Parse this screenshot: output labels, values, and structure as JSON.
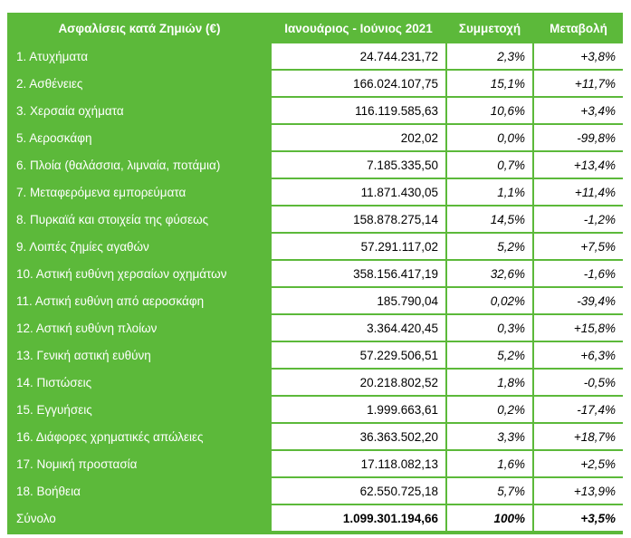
{
  "headers": [
    "Ασφαλίσεις κατά Ζημιών (€)",
    "Ιανουάριος - Ιούνιος 2021",
    "Συμμετοχή",
    "Μεταβολή"
  ],
  "rows": [
    {
      "label": "1. Ατυχήματα",
      "amount": "24.744.231,72",
      "share": "2,3%",
      "change": "+3,8%"
    },
    {
      "label": "2. Ασθένειες",
      "amount": "166.024.107,75",
      "share": "15,1%",
      "change": "+11,7%"
    },
    {
      "label": "3. Χερσαία οχήματα",
      "amount": "116.119.585,63",
      "share": "10,6%",
      "change": "+3,4%"
    },
    {
      "label": "5. Αεροσκάφη",
      "amount": "202,02",
      "share": "0,0%",
      "change": "-99,8%"
    },
    {
      "label": "6. Πλοία (θαλάσσια, λιμναία, ποτάμια)",
      "amount": "7.185.335,50",
      "share": "0,7%",
      "change": "+13,4%"
    },
    {
      "label": "7. Μεταφερόμενα εμπορεύματα",
      "amount": "11.871.430,05",
      "share": "1,1%",
      "change": "+11,4%"
    },
    {
      "label": "8. Πυρκαϊά και στοιχεία της φύσεως",
      "amount": "158.878.275,14",
      "share": "14,5%",
      "change": "-1,2%"
    },
    {
      "label": "9. Λοιπές ζημίες αγαθών",
      "amount": "57.291.117,02",
      "share": "5,2%",
      "change": "+7,5%"
    },
    {
      "label": "10. Αστική ευθύνη χερσαίων οχημάτων",
      "amount": "358.156.417,19",
      "share": "32,6%",
      "change": "-1,6%"
    },
    {
      "label": "11. Αστική ευθύνη από αεροσκάφη",
      "amount": "185.790,04",
      "share": "0,02%",
      "change": "-39,4%"
    },
    {
      "label": "12. Αστική ευθύνη πλοίων",
      "amount": "3.364.420,45",
      "share": "0,3%",
      "change": "+15,8%"
    },
    {
      "label": "13. Γενική αστική ευθύνη",
      "amount": "57.229.506,51",
      "share": "5,2%",
      "change": "+6,3%"
    },
    {
      "label": "14. Πιστώσεις",
      "amount": "20.218.802,52",
      "share": "1,8%",
      "change": "-0,5%"
    },
    {
      "label": "15. Εγγυήσεις",
      "amount": "1.999.663,61",
      "share": "0,2%",
      "change": "-17,4%"
    },
    {
      "label": "16. Διάφορες χρηματικές απώλειες",
      "amount": "36.363.502,20",
      "share": "3,3%",
      "change": "+18,7%"
    },
    {
      "label": "17. Νομική προστασία",
      "amount": "17.118.082,13",
      "share": "1,6%",
      "change": "+2,5%"
    },
    {
      "label": "18. Βοήθεια",
      "amount": "62.550.725,18",
      "share": "5,7%",
      "change": "+13,9%"
    }
  ],
  "total": {
    "label": "Σύνολο",
    "amount": "1.099.301.194,66",
    "share": "100%",
    "change": "+3,5%"
  },
  "colors": {
    "header_bg": "#5cb93a",
    "cell_bg": "#ffffff"
  }
}
